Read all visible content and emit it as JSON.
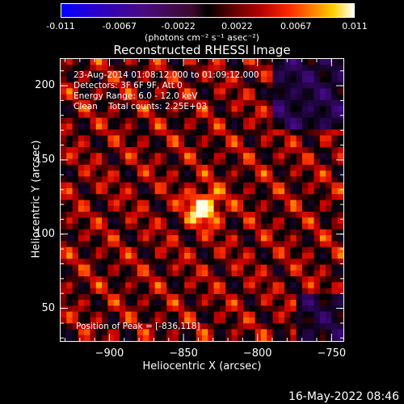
{
  "colorbar": {
    "tick_labels": [
      "-0.011",
      "-0.0067",
      "-0.0022",
      "0.0022",
      "0.0067",
      "0.011"
    ],
    "units": "(photons cm⁻² s⁻¹ asec⁻²)",
    "range": [
      -0.011,
      0.011
    ],
    "colormap": "blue-black-red-yellow-white"
  },
  "chart_data": {
    "type": "heatmap",
    "title": "Reconstructed RHESSI Image",
    "xlabel": "Heliocentric X (arcsec)",
    "ylabel": "Heliocentric Y (arcsec)",
    "xlim": [
      -933,
      -742
    ],
    "ylim": [
      28,
      218
    ],
    "x_tick_labels": [
      "−900",
      "−850",
      "−800",
      "−750"
    ],
    "y_tick_labels": [
      "50",
      "100",
      "150",
      "200"
    ],
    "x_ticks": [
      -900,
      -850,
      -800,
      -750
    ],
    "y_ticks": [
      50,
      100,
      150,
      200
    ],
    "peak": [
      -836,
      118
    ],
    "annotations": [
      "23-Aug-2014 01:08:12.000 to 01:09:12.000",
      "Detectors: 3F 6F 9F, Att 0",
      "Energy Range: 6.0 - 12.0 keV",
      "Clean    Total counts: 2.25E+03"
    ],
    "peak_label": "Position of Peak = [-836,118]"
  },
  "footer": {
    "timestamp": "16-May-2022 08:46"
  }
}
